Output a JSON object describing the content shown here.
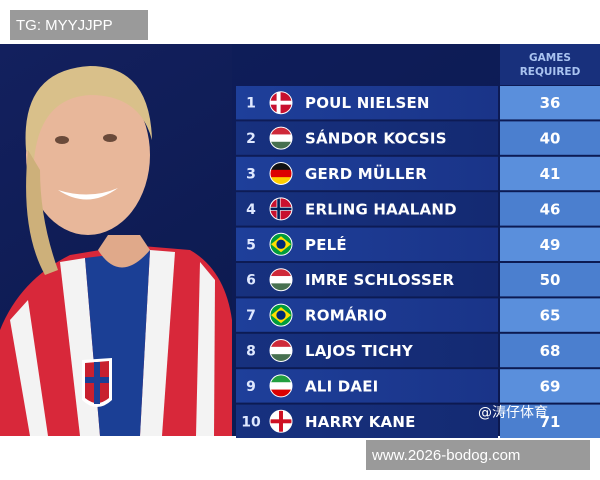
{
  "watermark": "TG: MYYJJPP",
  "header": [
    "GAMES",
    "REQUIRED"
  ],
  "rows": [
    {
      "rank": 1,
      "name": "POUL NIELSEN",
      "games": 36
    },
    {
      "rank": 2,
      "name": "SÁNDOR KOCSIS",
      "games": 40
    },
    {
      "rank": 3,
      "name": "GERD MÜLLER",
      "games": 41
    },
    {
      "rank": 4,
      "name": "ERLING HAALAND",
      "games": 46
    },
    {
      "rank": 5,
      "name": "PELÉ",
      "games": 49
    },
    {
      "rank": 6,
      "name": "IMRE SCHLOSSER",
      "games": 50
    },
    {
      "rank": 7,
      "name": "ROMÁRIO",
      "games": 65
    },
    {
      "rank": 8,
      "name": "LAJOS TICHY",
      "games": 68
    },
    {
      "rank": 9,
      "name": "ALI DAEI",
      "games": 69
    },
    {
      "rank": 10,
      "name": "HARRY KANE",
      "games": 71
    }
  ],
  "social_watermark": "@涛仔体育",
  "site_watermark": "www.2026-bodog.com"
}
